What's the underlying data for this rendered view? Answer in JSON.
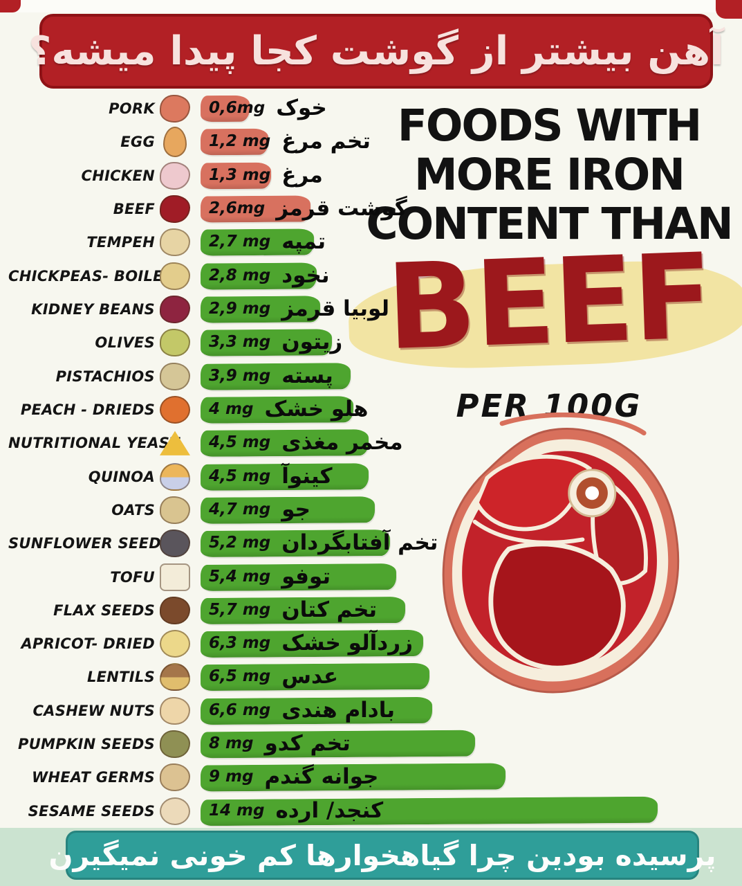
{
  "header_banner": {
    "text": "آهن بیشتر از گوشت کجا پیدا میشه؟",
    "bg_color": "#b22025",
    "text_color": "#f7e2de"
  },
  "title_block": {
    "line1": "FOODS WITH",
    "line2": "MORE IRON",
    "line3": "CONTENT THAN",
    "highlight_word": "BEEF",
    "highlight_color": "#9c181c",
    "highlight_bg": "#f2e4a3",
    "subtitle": "PER 100G"
  },
  "footer_banner": {
    "text": "پرسیده بودین چرا گیاهخوارها کم خونی نمیگیرن",
    "bg_color": "#2f9e99",
    "text_color": "#fdfdfc"
  },
  "colors": {
    "bar_red": "#d8715f",
    "bar_green": "#4ea52f",
    "background": "#f7f7ef",
    "footer_strip": "#cbe3d0"
  },
  "chart_data": {
    "type": "bar",
    "orientation": "horizontal",
    "title": "FOODS WITH MORE IRON CONTENT THAN BEEF PER 100G",
    "unit": "mg iron per 100 g",
    "categories": [
      "PORK",
      "EGG",
      "CHICKEN",
      "BEEF",
      "TEMPEH",
      "CHICKPEAS- BOILED",
      "KIDNEY BEANS",
      "OLIVES",
      "PISTACHIOS",
      "PEACH - DRIEDS",
      "NUTRITIONAL YEAST",
      "QUINOA",
      "OATS",
      "SUNFLOWER SEEDS",
      "TOFU",
      "FLAX SEEDS",
      "APRICOT- DRIED",
      "LENTILS",
      "CASHEW NUTS",
      "PUMPKIN SEEDS",
      "WHEAT GERMS",
      "SESAME SEEDS"
    ],
    "values": [
      0.6,
      1.2,
      1.3,
      2.6,
      2.7,
      2.8,
      2.9,
      3.3,
      3.9,
      4,
      4.5,
      4.5,
      4.7,
      5.2,
      5.4,
      5.7,
      6.3,
      6.5,
      6.6,
      8,
      9,
      14
    ],
    "items": [
      {
        "id": "pork",
        "label": "PORK",
        "persian": "خوک",
        "value": 0.6,
        "value_label": "0,6mg",
        "bar_color": "#d8715f",
        "icon": {
          "shape": "blob",
          "color": "#dc795f"
        }
      },
      {
        "id": "egg",
        "label": "EGG",
        "persian": "تخم مرغ",
        "value": 1.2,
        "value_label": "1,2 mg",
        "bar_color": "#d8715f",
        "icon": {
          "shape": "oval",
          "color": "#e7a75e"
        }
      },
      {
        "id": "chicken",
        "label": "CHICKEN",
        "persian": "مرغ",
        "value": 1.3,
        "value_label": "1,3 mg",
        "bar_color": "#d8715f",
        "icon": {
          "shape": "blob",
          "color": "#eec9ce"
        }
      },
      {
        "id": "beef",
        "label": "BEEF",
        "persian": "گوشت قرمز",
        "value": 2.6,
        "value_label": "2,6mg",
        "bar_color": "#d8715f",
        "icon": {
          "shape": "blob",
          "color": "#a01c26"
        }
      },
      {
        "id": "tempeh",
        "label": "TEMPEH",
        "persian": "تمپه",
        "value": 2.7,
        "value_label": "2,7 mg",
        "bar_color": "#4ea52f",
        "icon": {
          "shape": "cluster",
          "color": "#e7d4a4"
        }
      },
      {
        "id": "chickpeas",
        "label": "CHICKPEAS- BOILED",
        "persian": "نخود",
        "value": 2.8,
        "value_label": "2,8 mg",
        "bar_color": "#4ea52f",
        "icon": {
          "shape": "cluster",
          "color": "#e3cd8c"
        }
      },
      {
        "id": "kidney-beans",
        "label": "KIDNEY BEANS",
        "persian": "لوبیا قرمز",
        "value": 2.9,
        "value_label": "2,9 mg",
        "bar_color": "#4ea52f",
        "icon": {
          "shape": "blob",
          "color": "#8e2440"
        }
      },
      {
        "id": "olives",
        "label": "OLIVES",
        "persian": "زیتون",
        "value": 3.3,
        "value_label": "3,3 mg",
        "bar_color": "#4ea52f",
        "icon": {
          "shape": "cluster",
          "color": "#c3c868"
        }
      },
      {
        "id": "pistachios",
        "label": "PISTACHIOS",
        "persian": "پسته",
        "value": 3.9,
        "value_label": "3,9 mg",
        "bar_color": "#4ea52f",
        "icon": {
          "shape": "cluster",
          "color": "#d5c697"
        }
      },
      {
        "id": "peach-dried",
        "label": "PEACH - DRIEDS",
        "persian": "هلو خشک",
        "value": 4,
        "value_label": "4 mg",
        "bar_color": "#4ea52f",
        "icon": {
          "shape": "round",
          "color": "#e0702f"
        }
      },
      {
        "id": "nutritional-yeast",
        "label": "NUTRITIONAL YEAST",
        "persian": "مخمر مغذی",
        "value": 4.5,
        "value_label": "4,5 mg",
        "bar_color": "#4ea52f",
        "icon": {
          "shape": "triangle",
          "color": "#edbe3d"
        }
      },
      {
        "id": "quinoa",
        "label": "QUINOA",
        "persian": "کینوآ",
        "value": 4.5,
        "value_label": "4,5 mg",
        "bar_color": "#4ea52f",
        "icon": {
          "shape": "bowl",
          "color": "#ecb65b",
          "color2": "#c9cfe8"
        }
      },
      {
        "id": "oats",
        "label": "OATS",
        "persian": "جو",
        "value": 4.7,
        "value_label": "4,7 mg",
        "bar_color": "#4ea52f",
        "icon": {
          "shape": "cluster",
          "color": "#d9c490"
        }
      },
      {
        "id": "sunflower-seeds",
        "label": "SUNFLOWER SEEDS",
        "persian": "تخم آفتابگردان",
        "value": 5.2,
        "value_label": "5,2 mg",
        "bar_color": "#4ea52f",
        "icon": {
          "shape": "cluster",
          "color": "#5a555c"
        }
      },
      {
        "id": "tofu",
        "label": "TOFU",
        "persian": "توفو",
        "value": 5.4,
        "value_label": "5,4 mg",
        "bar_color": "#4ea52f",
        "icon": {
          "shape": "cube",
          "color": "#f3ecd9"
        }
      },
      {
        "id": "flax-seeds",
        "label": "FLAX SEEDS",
        "persian": "تخم کتان",
        "value": 5.7,
        "value_label": "5,7 mg",
        "bar_color": "#4ea52f",
        "icon": {
          "shape": "cluster",
          "color": "#7b4a2c"
        }
      },
      {
        "id": "apricot-dried",
        "label": "APRICOT- DRIED",
        "persian": "زردآلو خشک",
        "value": 6.3,
        "value_label": "6,3 mg",
        "bar_color": "#4ea52f",
        "icon": {
          "shape": "round",
          "color": "#ecd88a"
        }
      },
      {
        "id": "lentils",
        "label": "LENTILS",
        "persian": "عدس",
        "value": 6.5,
        "value_label": "6,5 mg",
        "bar_color": "#4ea52f",
        "icon": {
          "shape": "bowl",
          "color": "#a5764a",
          "color2": "#e0bd6d"
        }
      },
      {
        "id": "cashew-nuts",
        "label": "CASHEW NUTS",
        "persian": "بادام هندی",
        "value": 6.6,
        "value_label": "6,6 mg",
        "bar_color": "#4ea52f",
        "icon": {
          "shape": "cluster",
          "color": "#eed6a9"
        }
      },
      {
        "id": "pumpkin-seeds",
        "label": "PUMPKIN SEEDS",
        "persian": "تخم کدو",
        "value": 8,
        "value_label": "8 mg",
        "bar_color": "#4ea52f",
        "icon": {
          "shape": "cluster",
          "color": "#8f9054"
        }
      },
      {
        "id": "wheat-germs",
        "label": "WHEAT GERMS",
        "persian": "جوانه گندم",
        "value": 9,
        "value_label": "9 mg",
        "bar_color": "#4ea52f",
        "icon": {
          "shape": "cluster",
          "color": "#dcc292"
        }
      },
      {
        "id": "sesame-seeds",
        "label": "SESAME SEEDS",
        "persian": "کنجد/ ارده",
        "value": 14,
        "value_label": "14 mg",
        "bar_color": "#4ea52f",
        "icon": {
          "shape": "round",
          "color": "#ecdaba"
        }
      }
    ]
  }
}
